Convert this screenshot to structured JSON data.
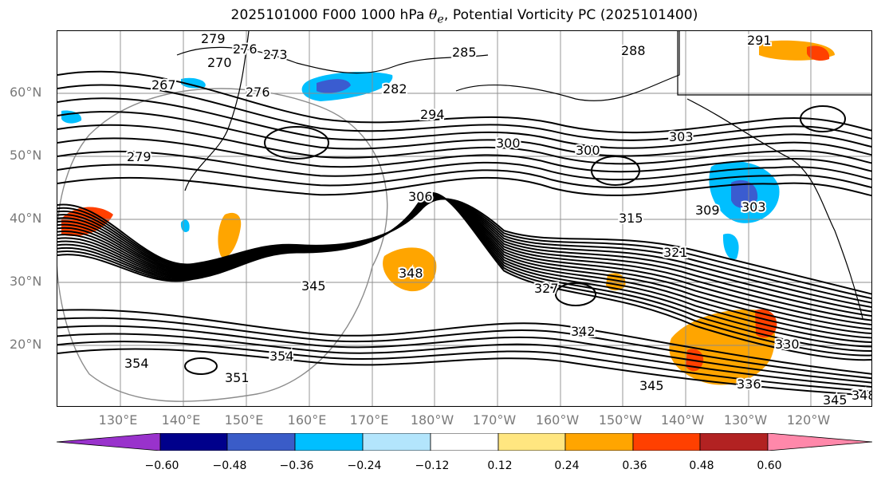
{
  "title": {
    "prefix": "2025101000 F000 1000 hPa ",
    "symbol": "θ",
    "subscript": "e",
    "suffix": ", Potential Vorticity PC (2025101400)"
  },
  "map": {
    "lat_labels": [
      "60°N",
      "50°N",
      "40°N",
      "30°N",
      "20°N"
    ],
    "lon_labels": [
      "130°E",
      "140°E",
      "150°E",
      "160°E",
      "170°E",
      "180°W",
      "170°W",
      "160°W",
      "150°W",
      "140°W",
      "130°W",
      "120°W"
    ],
    "contour_labels": [
      "279",
      "276",
      "273",
      "270",
      "267",
      "276",
      "282",
      "285",
      "288",
      "291",
      "294",
      "300",
      "300",
      "303",
      "279",
      "306",
      "309",
      "303",
      "315",
      "321",
      "327",
      "330",
      "345",
      "348",
      "351",
      "354",
      "354",
      "342",
      "345",
      "345",
      "348",
      "336"
    ],
    "colors": {
      "land_lines": "#000000",
      "grid": "#8c8c8c",
      "positive_fill": "#ffa500",
      "strong_positive_fill": "#ff4000",
      "negative_fill": "#00bfff",
      "strong_negative_fill": "#3a5cd0"
    }
  },
  "colorbar": {
    "ticks": [
      "−0.60",
      "−0.48",
      "−0.36",
      "−0.24",
      "−0.12",
      "0.12",
      "0.24",
      "0.36",
      "0.48",
      "0.60"
    ],
    "colors": [
      "#9932cc",
      "#00008b",
      "#3a5cc8",
      "#00bfff",
      "#b3e5fc",
      "#ffffff",
      "#ffe680",
      "#ffa500",
      "#ff4000",
      "#b22222",
      "#ff88aa"
    ]
  }
}
